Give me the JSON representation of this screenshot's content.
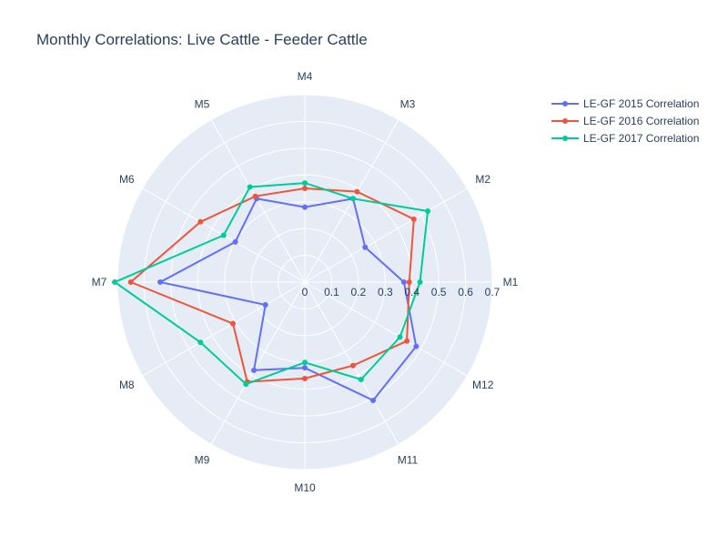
{
  "chart_data": {
    "type": "radar",
    "title": "Monthly Correlations: Live Cattle - Feeder Cattle",
    "categories": [
      "M1",
      "M2",
      "M3",
      "M4",
      "M5",
      "M6",
      "M7",
      "M8",
      "M9",
      "M10",
      "M11",
      "M12"
    ],
    "radial_range": [
      0,
      0.7
    ],
    "radial_ticks": [
      "0",
      "0.1",
      "0.2",
      "0.3",
      "0.4",
      "0.5",
      "0.6",
      "0.7"
    ],
    "legend_position": "top-right",
    "grid": true,
    "series": [
      {
        "name": "LE-GF 2015 Correlation",
        "color": "#636efa",
        "values": [
          0.37,
          0.26,
          0.36,
          0.28,
          0.36,
          0.3,
          0.54,
          0.17,
          0.38,
          0.32,
          0.51,
          0.48
        ]
      },
      {
        "name": "LE-GF 2016 Correlation",
        "color": "#ef553b",
        "values": [
          0.39,
          0.47,
          0.39,
          0.35,
          0.37,
          0.45,
          0.65,
          0.31,
          0.43,
          0.36,
          0.36,
          0.44
        ]
      },
      {
        "name": "LE-GF 2017 Correlation",
        "color": "#00cc96",
        "values": [
          0.43,
          0.53,
          0.36,
          0.37,
          0.41,
          0.35,
          0.71,
          0.45,
          0.44,
          0.3,
          0.42,
          0.41
        ]
      }
    ]
  }
}
